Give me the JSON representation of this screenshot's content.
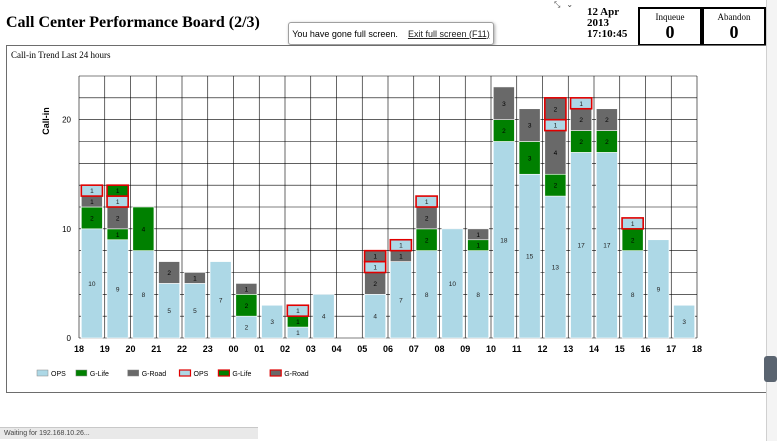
{
  "header": {
    "title": "Call Center Performance Board (2/3)",
    "date_line1": "12 Apr",
    "date_line2": "2013",
    "time": "17:10:45",
    "inqueue_label": "Inqueue",
    "inqueue_value": "0",
    "abandon_label": "Abandon",
    "abandon_value": "0"
  },
  "browser": {
    "fullscreen_message": "You have gone full screen.",
    "exit_link": "Exit full screen (F11)",
    "status_text": "Waiting for 192.168.10.26..."
  },
  "colors": {
    "ops": "#add8e6",
    "glife": "#008000",
    "groad": "#696969",
    "highlight": "#e00000"
  },
  "chart_data": {
    "type": "bar",
    "title": "Call-in Trend Last 24 hours",
    "ylabel": "Call-in",
    "xlabel": "",
    "ylim": [
      0,
      24
    ],
    "yticks": [
      0,
      10,
      20
    ],
    "grid": true,
    "stacked": true,
    "categories": [
      "18",
      "19",
      "20",
      "21",
      "22",
      "23",
      "00",
      "01",
      "02",
      "03",
      "04",
      "05",
      "06",
      "07",
      "08",
      "09",
      "10",
      "11",
      "12",
      "13",
      "14",
      "15",
      "16",
      "17"
    ],
    "extra_tick": "18",
    "series": [
      {
        "name": "OPS",
        "color": "#add8e6",
        "values": [
          10,
          9,
          8,
          5,
          5,
          7,
          2,
          3,
          1,
          4,
          0,
          4,
          7,
          8,
          10,
          8,
          18,
          15,
          13,
          17,
          17,
          8,
          9,
          3
        ]
      },
      {
        "name": "G-Life",
        "color": "#008000",
        "values": [
          2,
          1,
          4,
          0,
          0,
          0,
          2,
          0,
          1,
          0,
          0,
          0,
          0,
          2,
          0,
          1,
          2,
          3,
          2,
          2,
          2,
          2,
          0,
          0
        ]
      },
      {
        "name": "G-Road",
        "color": "#696969",
        "values": [
          1,
          2,
          0,
          2,
          1,
          0,
          1,
          0,
          0,
          0,
          0,
          2,
          1,
          2,
          0,
          1,
          3,
          3,
          4,
          2,
          2,
          0,
          0,
          0
        ]
      },
      {
        "name": "OPS",
        "color": "#add8e6",
        "highlight": true,
        "values": [
          1,
          1,
          0,
          0,
          0,
          0,
          0,
          0,
          1,
          0,
          0,
          1,
          1,
          1,
          0,
          0,
          0,
          0,
          1,
          1,
          0,
          1,
          0,
          0
        ]
      },
      {
        "name": "G-Life",
        "color": "#008000",
        "highlight": true,
        "values": [
          0,
          1,
          0,
          0,
          0,
          0,
          0,
          0,
          0,
          0,
          0,
          0,
          0,
          0,
          0,
          0,
          0,
          0,
          0,
          0,
          0,
          0,
          0,
          0
        ]
      },
      {
        "name": "G-Road",
        "color": "#696969",
        "highlight": true,
        "values": [
          0,
          0,
          0,
          0,
          0,
          0,
          0,
          0,
          0,
          0,
          0,
          1,
          0,
          0,
          0,
          0,
          0,
          0,
          2,
          0,
          0,
          0,
          0,
          0
        ]
      }
    ],
    "legend": [
      "OPS",
      "G-Life",
      "G-Road",
      "OPS",
      "G-Life",
      "G-Road"
    ],
    "legend_position": "bottom-left"
  }
}
